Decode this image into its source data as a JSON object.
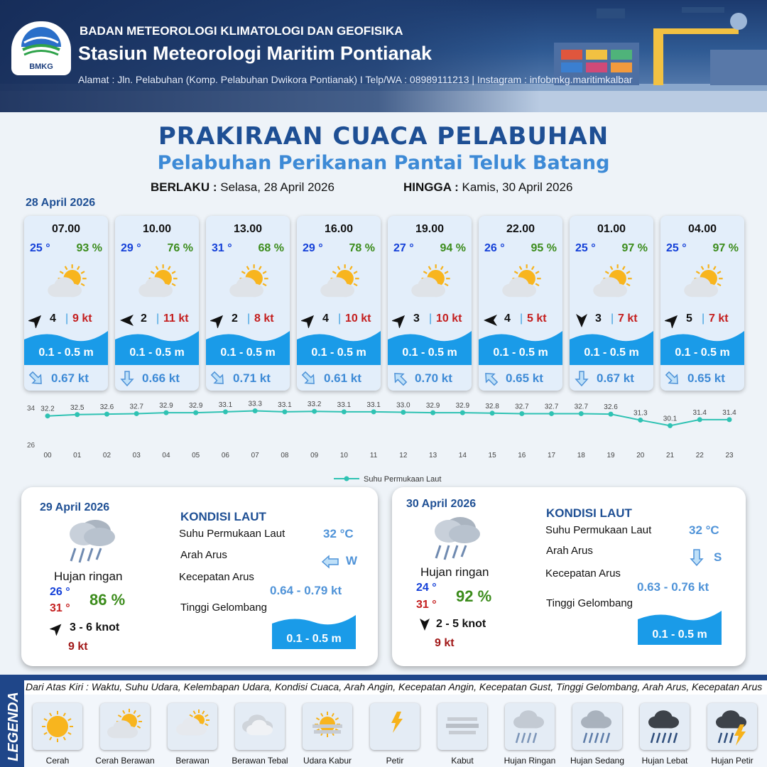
{
  "header": {
    "logo_text": "BMKG",
    "org": "BADAN METEOROLOGI KLIMATOLOGI DAN GEOFISIKA",
    "station": "Stasiun Meteorologi Maritim Pontianak",
    "address": "Alamat : Jln. Pelabuhan (Komp. Pelabuhan Dwikora Pontianak) I Telp/WA : 08989111213 | Instagram : infobmkg.maritimkalbar"
  },
  "title": "PRAKIRAAN CUACA PELABUHAN",
  "subtitle": "Pelabuhan Perikanan Pantai Teluk Batang",
  "validity": {
    "from_label": "BERLAKU :",
    "from_value": "Selasa, 28 April 2026",
    "to_label": "HINGGA :",
    "to_value": "Kamis, 30 April 2026"
  },
  "day1_label": "28 April 2026",
  "cards": [
    {
      "time": "07.00",
      "temp": "25 °",
      "hum": "93 %",
      "wind_dir": "NE",
      "wind": "4",
      "sep": "|",
      "gust": "9 kt",
      "wave": "0.1 - 0.5 m",
      "cur_dir": "SE",
      "cur": "0.67 kt",
      "icon": "cerah-berawan"
    },
    {
      "time": "10.00",
      "temp": "29 °",
      "hum": "76 %",
      "wind_dir": "W",
      "wind": "2",
      "sep": "|",
      "gust": "11 kt",
      "wave": "0.1 - 0.5 m",
      "cur_dir": "S",
      "cur": "0.66 kt",
      "icon": "cerah-berawan"
    },
    {
      "time": "13.00",
      "temp": "31 °",
      "hum": "68 %",
      "wind_dir": "NE",
      "wind": "2",
      "sep": "|",
      "gust": "8 kt",
      "wave": "0.1 - 0.5 m",
      "cur_dir": "SE",
      "cur": "0.71 kt",
      "icon": "cerah-berawan"
    },
    {
      "time": "16.00",
      "temp": "29 °",
      "hum": "78 %",
      "wind_dir": "NE",
      "wind": "4",
      "sep": "|",
      "gust": "10 kt",
      "wave": "0.1 - 0.5 m",
      "cur_dir": "SE",
      "cur": "0.61 kt",
      "icon": "cerah-berawan"
    },
    {
      "time": "19.00",
      "temp": "27 °",
      "hum": "94 %",
      "wind_dir": "NE",
      "wind": "3",
      "sep": "|",
      "gust": "10 kt",
      "wave": "0.1 - 0.5 m",
      "cur_dir": "NW",
      "cur": "0.70 kt",
      "icon": "cerah-berawan"
    },
    {
      "time": "22.00",
      "temp": "26 °",
      "hum": "95 %",
      "wind_dir": "W",
      "wind": "4",
      "sep": "|",
      "gust": "5 kt",
      "wave": "0.1 - 0.5 m",
      "cur_dir": "NW",
      "cur": "0.65 kt",
      "icon": "cerah-berawan"
    },
    {
      "time": "01.00",
      "temp": "25 °",
      "hum": "97 %",
      "wind_dir": "S",
      "wind": "3",
      "sep": "|",
      "gust": "7 kt",
      "wave": "0.1 - 0.5 m",
      "cur_dir": "S",
      "cur": "0.67 kt",
      "icon": "cerah-berawan"
    },
    {
      "time": "04.00",
      "temp": "25 °",
      "hum": "97 %",
      "wind_dir": "NE",
      "wind": "5",
      "sep": "|",
      "gust": "7 kt",
      "wave": "0.1 - 0.5 m",
      "cur_dir": "SE",
      "cur": "0.65 kt",
      "icon": "cerah-berawan"
    }
  ],
  "chart_data": {
    "type": "line",
    "x": [
      "00",
      "01",
      "02",
      "03",
      "04",
      "05",
      "06",
      "07",
      "08",
      "09",
      "10",
      "11",
      "12",
      "13",
      "14",
      "15",
      "16",
      "17",
      "18",
      "19",
      "20",
      "21",
      "22",
      "23"
    ],
    "series": [
      {
        "name": "Suhu Permukaan Laut",
        "values": [
          32.2,
          32.5,
          32.6,
          32.7,
          32.9,
          32.9,
          33.1,
          33.3,
          33.1,
          33.2,
          33.1,
          33.1,
          33.0,
          32.9,
          32.9,
          32.8,
          32.7,
          32.7,
          32.7,
          32.6,
          31.3,
          30.1,
          31.4,
          31.4
        ],
        "labels": [
          "32.2",
          "32.5",
          "32.6",
          "32.7",
          "32.9",
          "32.9",
          "33.1",
          "33.3",
          "33.1",
          "33.2",
          "33.1",
          "33.1",
          "33.0",
          "32.9",
          "32.9",
          "32.8",
          "32.7",
          "32.7",
          "32.7",
          "32.6",
          "31.3",
          "30.1",
          "31.4",
          "31.4"
        ]
      }
    ],
    "ylim": [
      26,
      34
    ],
    "yticks": [
      "34",
      "26"
    ],
    "legend": "bottom",
    "color": "#2fc2b3"
  },
  "days": [
    {
      "date": "29 April 2026",
      "condition": "Hujan ringan",
      "tmin": "26 °",
      "tmax": "31 °",
      "hum": "86 %",
      "wind_dir": "NE",
      "wind": "3  - 6 knot",
      "gust": "9 kt",
      "kondisi": "KONDISI LAUT",
      "sst_label": "Suhu Permukaan Laut",
      "sst": "32 °C",
      "cur_dir_label": "Arah Arus",
      "cur_dir": "W",
      "cur_speed_label": "Kecepatan Arus",
      "cur_speed": "0.64 - 0.79 kt",
      "wave_label": "Tinggi Gelombang",
      "wave": "0.1 - 0.5 m"
    },
    {
      "date": "30 April 2026",
      "condition": "Hujan ringan",
      "tmin": "24 °",
      "tmax": "31 °",
      "hum": "92 %",
      "wind_dir": "S",
      "wind": "2  - 5 knot",
      "gust": "9 kt",
      "kondisi": "KONDISI LAUT",
      "sst_label": "Suhu Permukaan Laut",
      "sst": "32 °C",
      "cur_dir_label": "Arah Arus",
      "cur_dir": "S",
      "cur_speed_label": "Kecepatan Arus",
      "cur_speed": "0.63 - 0.76 kt",
      "wave_label": "Tinggi Gelombang",
      "wave": "0.1 - 0.5 m"
    }
  ],
  "legend": {
    "side": "LEGENDA",
    "desc": "Dari Atas Kiri : Waktu, Suhu Udara, Kelembapan Udara, Kondisi Cuaca, Arah Angin, Kecepatan Angin, Kecepatan Gust, Tinggi Gelombang, Arah Arus, Kecepatan Arus",
    "items": [
      {
        "label": "Cerah",
        "icon": "cerah"
      },
      {
        "label": "Cerah Berawan",
        "icon": "cerah-berawan"
      },
      {
        "label": "Berawan",
        "icon": "berawan"
      },
      {
        "label": "Berawan Tebal",
        "icon": "berawan-tebal"
      },
      {
        "label": "Udara Kabur",
        "icon": "udara-kabur"
      },
      {
        "label": "Petir",
        "icon": "petir"
      },
      {
        "label": "Kabut",
        "icon": "kabut"
      },
      {
        "label": "Hujan Ringan",
        "icon": "hujan-ringan"
      },
      {
        "label": "Hujan Sedang",
        "icon": "hujan-sedang"
      },
      {
        "label": "Hujan Lebat",
        "icon": "hujan-lebat"
      },
      {
        "label": "Hujan Petir",
        "icon": "hujan-petir"
      }
    ]
  },
  "colors": {
    "title": "#1e4f94",
    "subtitle": "#3d8ad6",
    "temp": "#1440d8",
    "humidity": "#3c8c1c",
    "gust": "#c41e1e",
    "wave": "#1a9be8",
    "current": "#3d8ad6"
  }
}
